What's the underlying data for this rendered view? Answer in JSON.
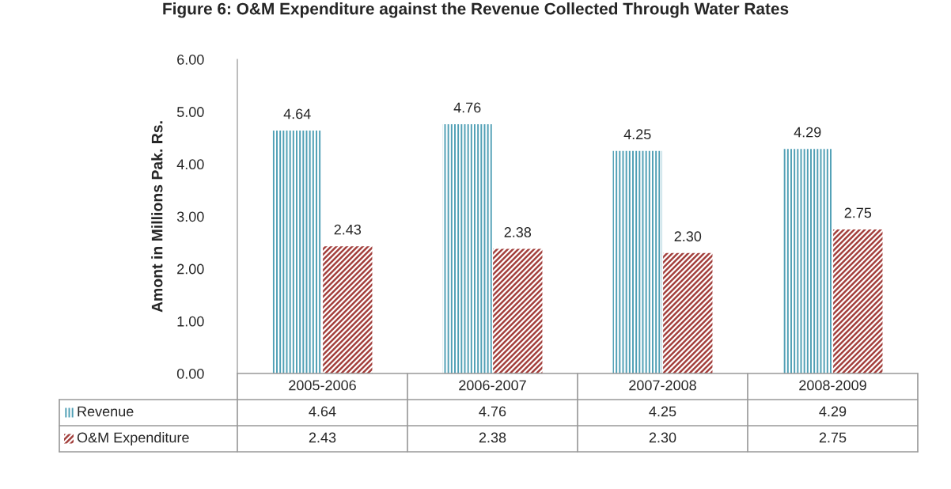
{
  "chart_data": {
    "type": "bar",
    "title": "Figure 6: O&M Expenditure against the Revenue Collected Through Water Rates",
    "ylabel": "Amont in Millions Pak. Rs.",
    "categories": [
      "2005-2006",
      "2006-2007",
      "2007-2008",
      "2008-2009"
    ],
    "series": [
      {
        "name": "Revenue",
        "color": "#4f9fb5",
        "values": [
          4.64,
          4.76,
          4.25,
          4.29
        ],
        "value_labels": [
          "4.64",
          "4.76",
          "4.25",
          "4.29"
        ]
      },
      {
        "name": "O&M Expenditure",
        "color": "#a3403d",
        "values": [
          2.43,
          2.38,
          2.3,
          2.75
        ],
        "value_labels": [
          "2.43",
          "2.38",
          "2.30",
          "2.75"
        ]
      }
    ],
    "ylim": [
      0,
      6
    ],
    "yticks": [
      {
        "value": 0,
        "label": "0.00"
      },
      {
        "value": 1,
        "label": "1.00"
      },
      {
        "value": 2,
        "label": "2.00"
      },
      {
        "value": 3,
        "label": "3.00"
      },
      {
        "value": 4,
        "label": "4.00"
      },
      {
        "value": 5,
        "label": "5.00"
      },
      {
        "value": 6,
        "label": "6.00"
      }
    ],
    "data_labels": true,
    "legend": "bottom",
    "grid": false
  }
}
